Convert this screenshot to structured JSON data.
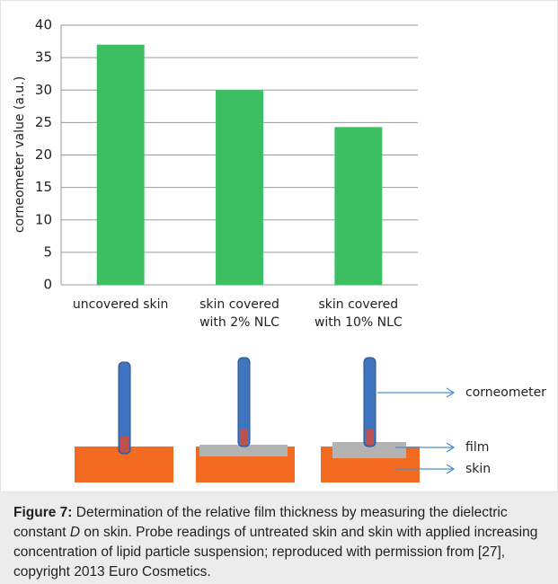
{
  "chart_data": {
    "type": "bar",
    "y_label": "corneometer value (a.u.)",
    "categories": [
      "uncovered skin",
      "skin covered with 2% NLC",
      "skin covered with 10% NLC"
    ],
    "values": [
      37,
      30,
      24.3
    ],
    "color": "#3cbf63",
    "ylim": [
      0,
      40
    ],
    "yticks": [
      0,
      5,
      10,
      15,
      20,
      25,
      30,
      35,
      40
    ],
    "grid": true
  },
  "diagram": {
    "labels": [
      "corneometer",
      "film",
      "skin"
    ]
  },
  "caption": {
    "label": "Figure 7:",
    "parts": [
      "Determination of the relative film thickness by measuring the dielectric constant ",
      "D",
      " on skin. Probe readings of untreated skin and skin with applied increasing concentration of lipid particle suspension; reproduced with permission from [27], copyright 2013 Euro Cosmetics."
    ]
  }
}
